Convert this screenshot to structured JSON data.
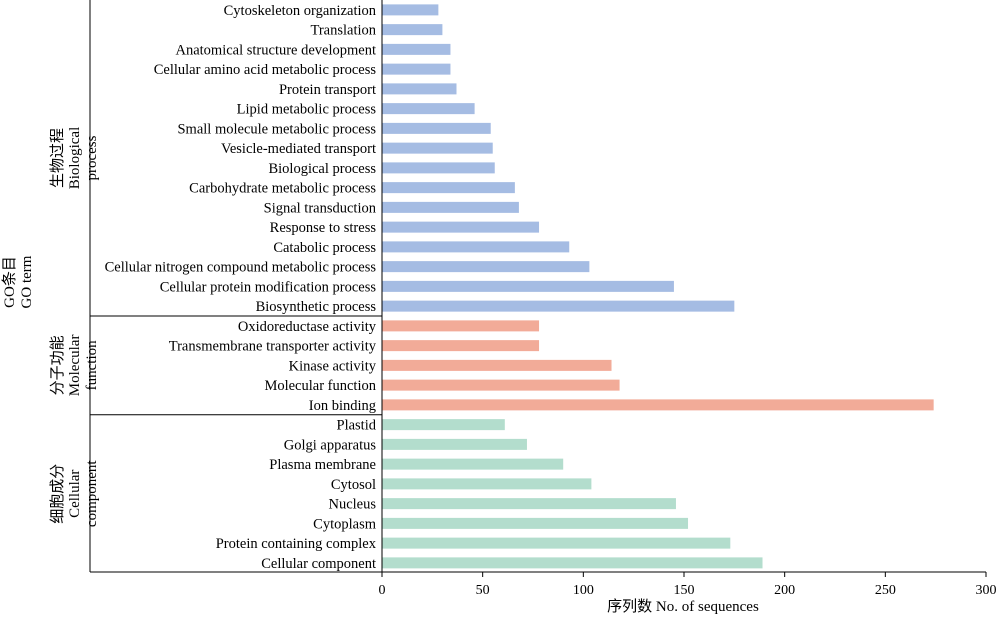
{
  "chart_data": {
    "type": "bar",
    "orientation": "horizontal",
    "xlabel": "序列数 No. of sequences",
    "ylabel": [
      "GO条目",
      "GO term"
    ],
    "xlim": [
      0,
      300
    ],
    "xticks": [
      0,
      50,
      100,
      150,
      200,
      250,
      300
    ],
    "grid": false,
    "groups": [
      {
        "label": [
          "生物过程",
          "Biological",
          "process"
        ],
        "color": "#a5bce3",
        "categories": [
          "Cytoskeleton organization",
          "Translation",
          "Anatomical structure development",
          "Cellular amino acid metabolic process",
          "Protein transport",
          "Lipid metabolic process",
          "Small molecule metabolic process",
          "Vesicle-mediated transport",
          "Biological process",
          "Carbohydrate metabolic process",
          "Signal transduction",
          "Response to stress",
          "Catabolic process",
          "Cellular nitrogen compound metabolic process",
          "Cellular protein modification process",
          "Biosynthetic process"
        ],
        "values": [
          28,
          30,
          34,
          34,
          37,
          46,
          54,
          55,
          56,
          66,
          68,
          78,
          93,
          103,
          145,
          175
        ]
      },
      {
        "label": [
          "分子功能",
          "Molecular",
          "function"
        ],
        "color": "#f2ab98",
        "categories": [
          "Oxidoreductase activity",
          "Transmembrane transporter activity",
          "Kinase activity",
          "Molecular function",
          "Ion binding"
        ],
        "values": [
          78,
          78,
          114,
          118,
          274
        ]
      },
      {
        "label": [
          "细胞成分",
          "Cellular",
          "component"
        ],
        "color": "#b3ddcd",
        "categories": [
          "Plastid",
          "Golgi apparatus",
          "Plasma membrane",
          "Cytosol",
          "Nucleus",
          "Cytoplasm",
          "Protein containing complex",
          "Cellular component"
        ],
        "values": [
          61,
          72,
          90,
          104,
          146,
          152,
          173,
          189
        ]
      }
    ]
  }
}
